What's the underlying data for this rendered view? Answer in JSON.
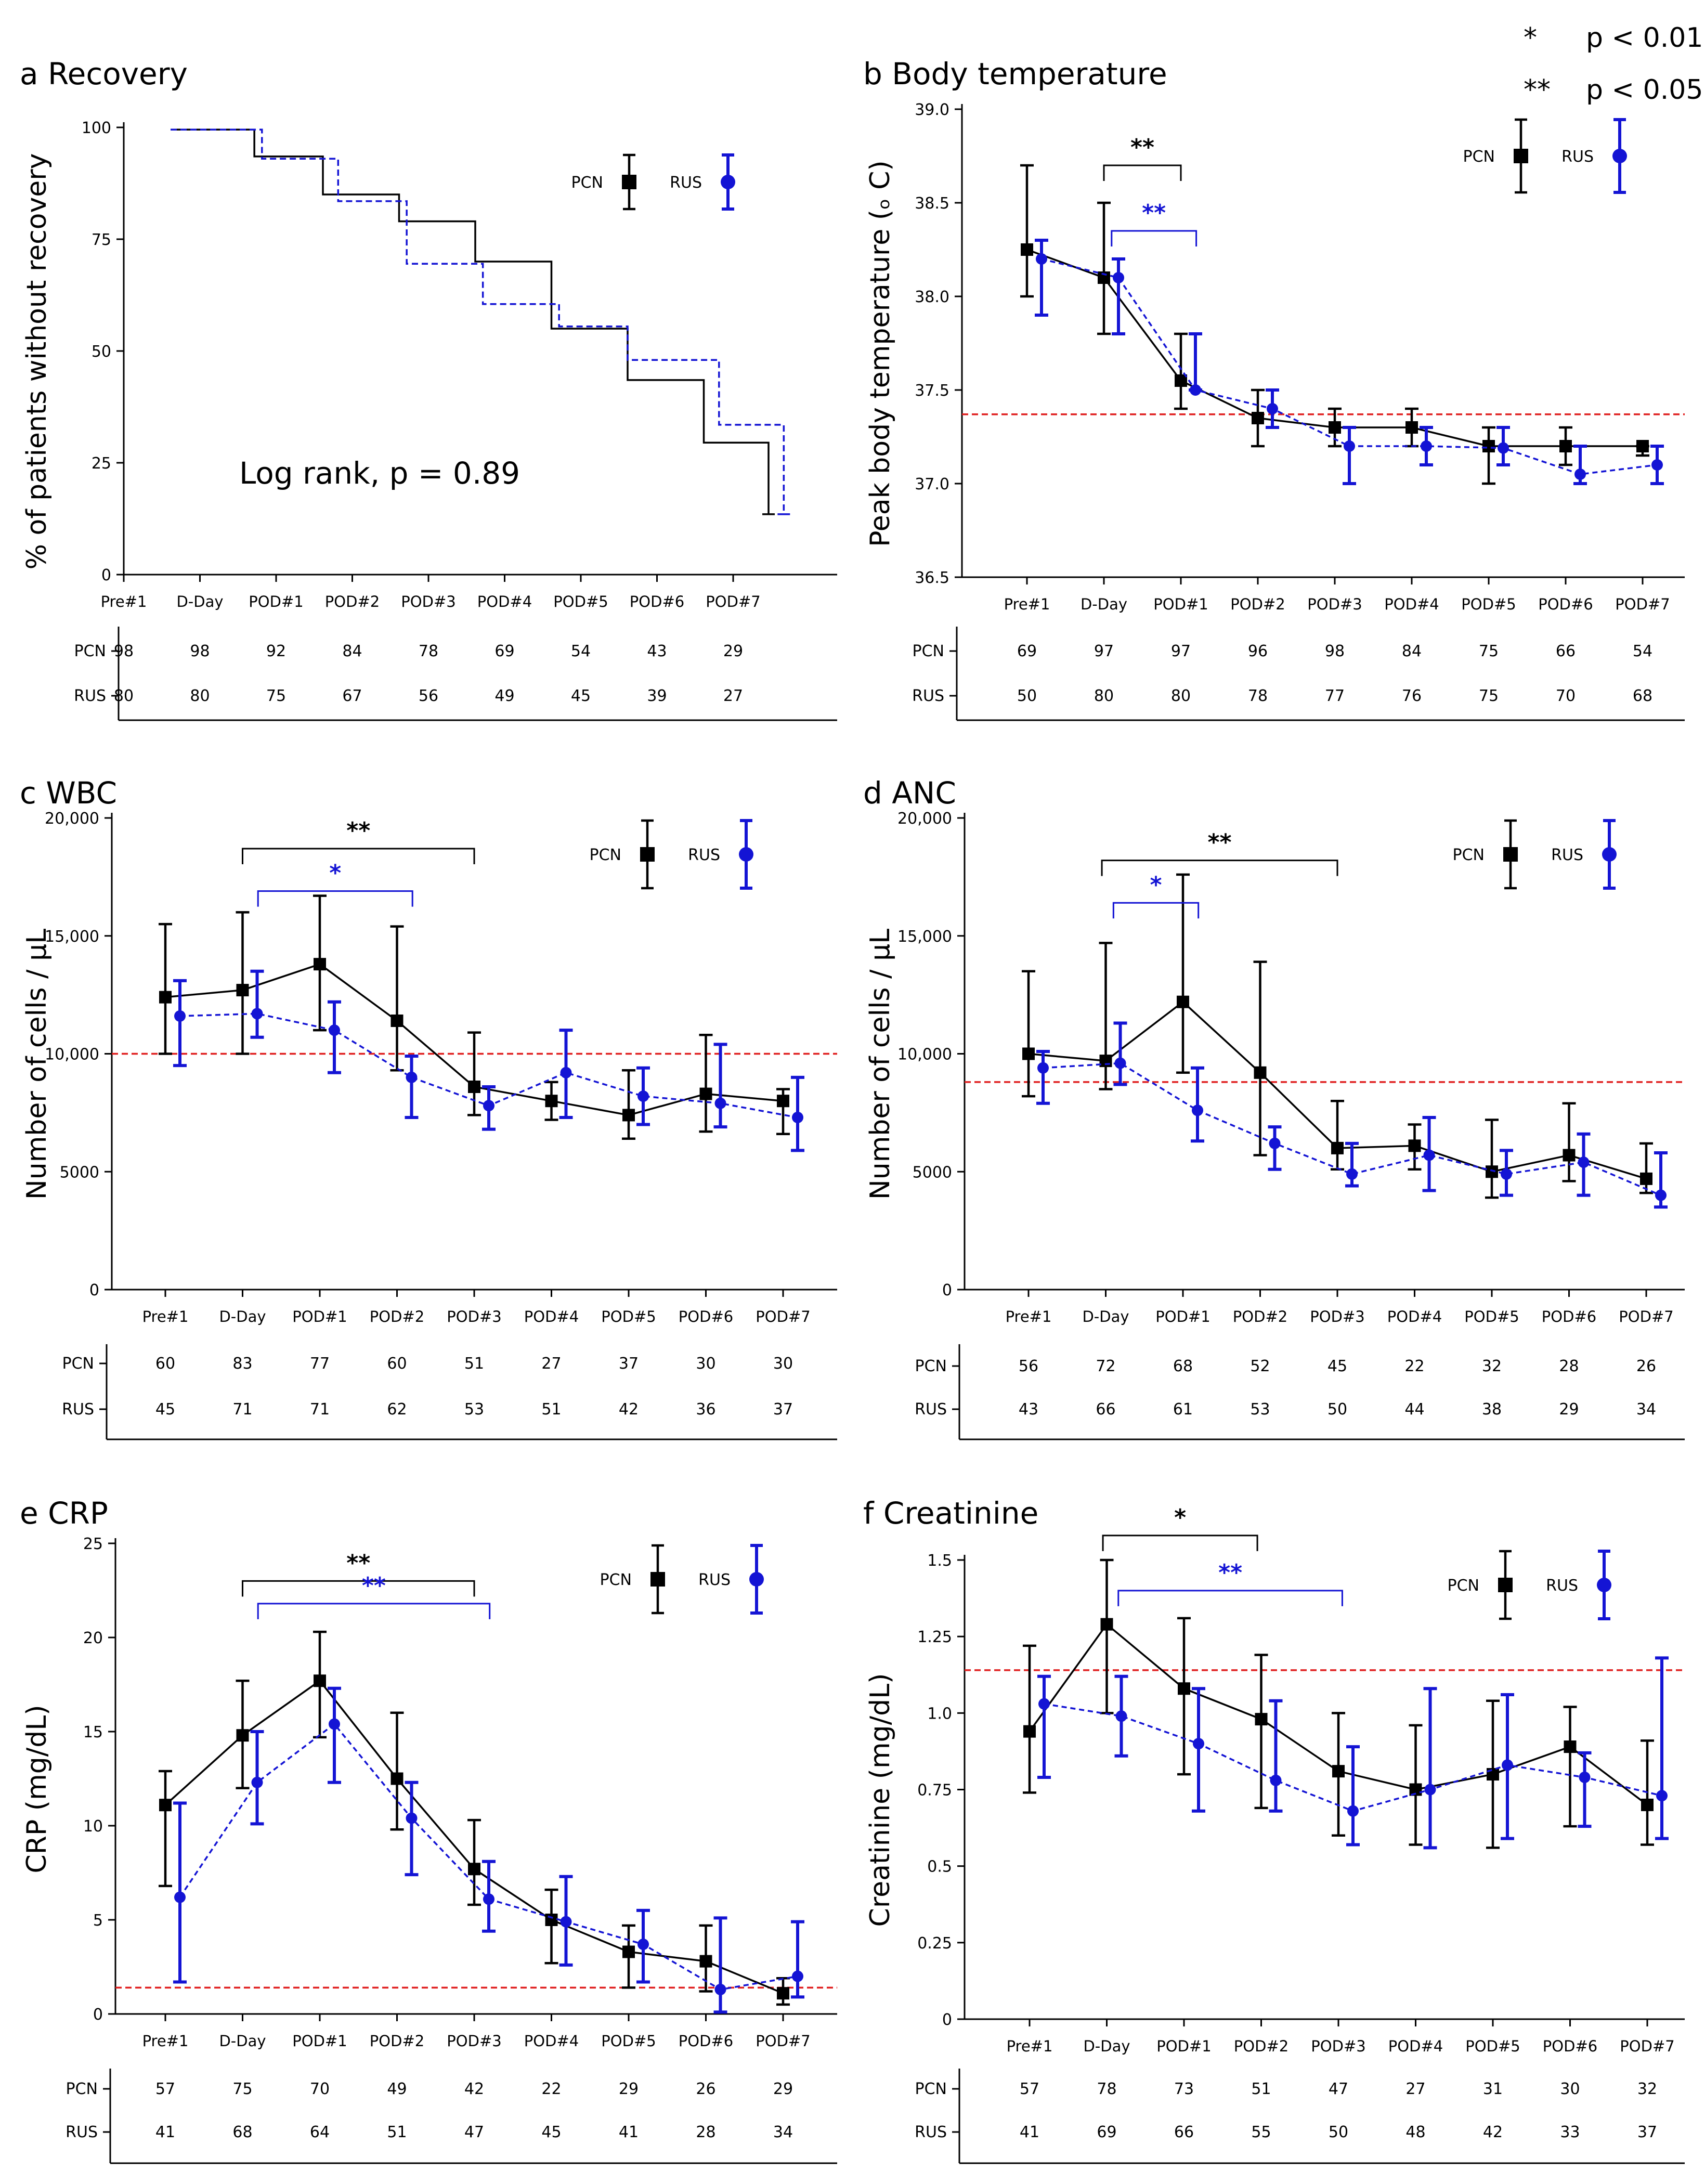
{
  "significance_legend": [
    {
      "symbol": "*",
      "text": "p < 0.01"
    },
    {
      "symbol": "**",
      "text": "p < 0.05"
    }
  ],
  "colors": {
    "pcn": "#000000",
    "rus": "#1414d4",
    "reference": "#e02020"
  },
  "legend": {
    "pcn": "PCN",
    "rus": "RUS"
  },
  "chart_data": [
    {
      "id": "a",
      "type": "line",
      "style": "step",
      "title": "a Recovery",
      "ylabel": "% of patients without recovery",
      "ylim": [
        0,
        100
      ],
      "yticks": [
        0,
        25,
        50,
        75,
        100
      ],
      "ytick_labels": [
        "0",
        "25",
        "50",
        "75",
        "100"
      ],
      "categories": [
        "Pre#1",
        "D-Day",
        "POD#1",
        "POD#2",
        "POD#3",
        "POD#4",
        "POD#5",
        "POD#6",
        "POD#7"
      ],
      "series": [
        {
          "name": "PCN",
          "steps": [
            [
              0,
              99.5
            ],
            [
              1.1,
              99.5
            ],
            [
              1.1,
              93.5
            ],
            [
              2,
              93.5
            ],
            [
              2,
              85
            ],
            [
              3,
              85
            ],
            [
              3,
              79
            ],
            [
              4,
              79
            ],
            [
              4,
              70
            ],
            [
              5,
              70
            ],
            [
              5,
              55
            ],
            [
              6,
              55
            ],
            [
              6,
              43.5
            ],
            [
              7,
              43.5
            ],
            [
              7,
              29.5
            ],
            [
              7.85,
              29.5
            ],
            [
              7.85,
              13.5
            ]
          ]
        },
        {
          "name": "RUS",
          "steps": [
            [
              0,
              99.5
            ],
            [
              1.2,
              99.5
            ],
            [
              1.2,
              93
            ],
            [
              2.2,
              93
            ],
            [
              2.2,
              83.5
            ],
            [
              3.1,
              83.5
            ],
            [
              3.1,
              69.5
            ],
            [
              4.1,
              69.5
            ],
            [
              4.1,
              60.5
            ],
            [
              5.1,
              60.5
            ],
            [
              5.1,
              55.5
            ],
            [
              6,
              55.5
            ],
            [
              6,
              48
            ],
            [
              7.2,
              48
            ],
            [
              7.2,
              33.5
            ],
            [
              8.05,
              33.5
            ],
            [
              8.05,
              13.5
            ]
          ]
        }
      ],
      "annotation": "Log rank, p = 0.89",
      "counts": {
        "PCN": [
          98,
          98,
          92,
          84,
          78,
          69,
          54,
          43,
          29
        ],
        "RUS": [
          80,
          80,
          75,
          67,
          56,
          49,
          45,
          39,
          27
        ]
      }
    },
    {
      "id": "b",
      "type": "line",
      "title": "b Body temperature",
      "ylabel": "Peak body temperature (ₒ C)",
      "ylim": [
        36.5,
        39.0
      ],
      "yticks": [
        36.5,
        37.0,
        37.5,
        38.0,
        38.5,
        39.0
      ],
      "ytick_labels": [
        "36.5",
        "37.0",
        "37.5",
        "38.0",
        "38.5",
        "39.0"
      ],
      "categories": [
        "Pre#1",
        "D-Day",
        "POD#1",
        "POD#2",
        "POD#3",
        "POD#4",
        "POD#5",
        "POD#6",
        "POD#7"
      ],
      "reference_line": 37.37,
      "series": [
        {
          "name": "PCN",
          "values": [
            38.25,
            38.1,
            37.55,
            37.35,
            37.3,
            37.3,
            37.2,
            37.2,
            37.2
          ],
          "err_low": [
            38.0,
            37.8,
            37.4,
            37.2,
            37.2,
            37.2,
            37.0,
            37.1,
            37.15
          ],
          "err_high": [
            38.7,
            38.5,
            37.8,
            37.5,
            37.4,
            37.4,
            37.3,
            37.3,
            37.2
          ]
        },
        {
          "name": "RUS",
          "values": [
            38.2,
            38.1,
            37.5,
            37.4,
            37.2,
            37.2,
            37.19,
            37.05,
            37.1
          ],
          "err_low": [
            37.9,
            37.8,
            37.5,
            37.3,
            37.0,
            37.1,
            37.1,
            37.0,
            37.0
          ],
          "err_high": [
            38.3,
            38.2,
            37.8,
            37.5,
            37.3,
            37.3,
            37.3,
            37.2,
            37.2
          ]
        }
      ],
      "brackets": [
        {
          "series": "PCN",
          "from": 1,
          "to": 2,
          "y": 38.7,
          "label": "**"
        },
        {
          "series": "RUS",
          "from": 1.1,
          "to": 2.2,
          "y": 38.35,
          "label": "**"
        }
      ],
      "counts": {
        "PCN": [
          69,
          97,
          97,
          96,
          98,
          84,
          75,
          66,
          54
        ],
        "RUS": [
          50,
          80,
          80,
          78,
          77,
          76,
          75,
          70,
          68
        ]
      }
    },
    {
      "id": "c",
      "type": "line",
      "title": "c WBC",
      "ylabel": "Number of cells / µL",
      "ylim": [
        0,
        20000
      ],
      "yticks": [
        0,
        5000,
        10000,
        15000,
        20000
      ],
      "ytick_labels": [
        "0",
        "5000",
        "10,000",
        "15,000",
        "20,000"
      ],
      "categories": [
        "Pre#1",
        "D-Day",
        "POD#1",
        "POD#2",
        "POD#3",
        "POD#4",
        "POD#5",
        "POD#6",
        "POD#7"
      ],
      "reference_line": 10000,
      "series": [
        {
          "name": "PCN",
          "values": [
            12400,
            12700,
            13800,
            11400,
            8600,
            8000,
            7400,
            8300,
            8000
          ],
          "err_low": [
            10000,
            10000,
            11000,
            9300,
            7400,
            7200,
            6400,
            6700,
            6600
          ],
          "err_high": [
            15500,
            16000,
            16700,
            15400,
            10900,
            8800,
            9300,
            10800,
            8500
          ]
        },
        {
          "name": "RUS",
          "values": [
            11600,
            11700,
            11000,
            9000,
            7800,
            9200,
            8200,
            7900,
            7300
          ],
          "err_low": [
            9500,
            10700,
            9200,
            7300,
            6800,
            7300,
            7000,
            6900,
            5900
          ],
          "err_high": [
            13100,
            13500,
            12200,
            9900,
            8600,
            11000,
            9400,
            10400,
            9000
          ]
        }
      ],
      "brackets": [
        {
          "series": "PCN",
          "from": 1,
          "to": 4,
          "y": 18700,
          "label": "**"
        },
        {
          "series": "RUS",
          "from": 1.2,
          "to": 3.2,
          "y": 16900,
          "label": "*"
        }
      ],
      "counts": {
        "PCN": [
          60,
          83,
          77,
          60,
          51,
          27,
          37,
          30,
          30
        ],
        "RUS": [
          45,
          71,
          71,
          62,
          53,
          51,
          42,
          36,
          37
        ]
      }
    },
    {
      "id": "d",
      "type": "line",
      "title": "d ANC",
      "ylabel": "Number of cells / µL",
      "ylim": [
        0,
        20000
      ],
      "yticks": [
        0,
        5000,
        10000,
        15000,
        20000
      ],
      "ytick_labels": [
        "0",
        "5000",
        "10,000",
        "15,000",
        "20,000"
      ],
      "categories": [
        "Pre#1",
        "D-Day",
        "POD#1",
        "POD#2",
        "POD#3",
        "POD#4",
        "POD#5",
        "POD#6",
        "POD#7"
      ],
      "reference_line": 8800,
      "series": [
        {
          "name": "PCN",
          "values": [
            10000,
            9700,
            12200,
            9200,
            6000,
            6100,
            5000,
            5700,
            4700
          ],
          "err_low": [
            8200,
            8500,
            9200,
            5700,
            5100,
            5100,
            3900,
            4600,
            4100
          ],
          "err_high": [
            13500,
            14700,
            17600,
            13900,
            8000,
            7000,
            7200,
            7900,
            6200
          ]
        },
        {
          "name": "RUS",
          "values": [
            9400,
            9600,
            7600,
            6200,
            4900,
            5700,
            4900,
            5400,
            4000
          ],
          "err_low": [
            7900,
            8700,
            6300,
            5100,
            4400,
            4200,
            4000,
            4000,
            3500
          ],
          "err_high": [
            10100,
            11300,
            9400,
            6900,
            6200,
            7300,
            5900,
            6600,
            5800
          ]
        }
      ],
      "brackets": [
        {
          "series": "PCN",
          "from": 0.95,
          "to": 4,
          "y": 18200,
          "label": "**"
        },
        {
          "series": "RUS",
          "from": 1.1,
          "to": 2.2,
          "y": 16400,
          "label": "*"
        }
      ],
      "counts": {
        "PCN": [
          56,
          72,
          68,
          52,
          45,
          22,
          32,
          28,
          26
        ],
        "RUS": [
          43,
          66,
          61,
          53,
          50,
          44,
          38,
          29,
          34
        ]
      }
    },
    {
      "id": "e",
      "type": "line",
      "title": "e CRP",
      "ylabel": "CRP (mg/dL)",
      "ylim": [
        0,
        25
      ],
      "yticks": [
        0,
        5,
        10,
        15,
        20,
        25
      ],
      "ytick_labels": [
        "0",
        "5",
        "10",
        "15",
        "20",
        "25"
      ],
      "categories": [
        "Pre#1",
        "D-Day",
        "POD#1",
        "POD#2",
        "POD#3",
        "POD#4",
        "POD#5",
        "POD#6",
        "POD#7"
      ],
      "reference_line": 1.4,
      "series": [
        {
          "name": "PCN",
          "values": [
            11.1,
            14.8,
            17.7,
            12.5,
            7.7,
            5.0,
            3.3,
            2.8,
            1.1
          ],
          "err_low": [
            6.8,
            12.0,
            14.7,
            9.8,
            5.8,
            2.7,
            1.4,
            1.2,
            0.5
          ],
          "err_high": [
            12.9,
            17.7,
            20.3,
            16.0,
            10.3,
            6.6,
            4.7,
            4.7,
            1.9
          ]
        },
        {
          "name": "RUS",
          "values": [
            6.2,
            12.3,
            15.4,
            10.4,
            6.1,
            4.9,
            3.7,
            1.3,
            2.0
          ],
          "err_low": [
            1.7,
            10.1,
            12.3,
            7.4,
            4.4,
            2.6,
            1.7,
            0.1,
            0.9
          ],
          "err_high": [
            11.2,
            15.0,
            17.3,
            12.3,
            8.1,
            7.3,
            5.5,
            5.1,
            4.9
          ]
        }
      ],
      "brackets": [
        {
          "series": "PCN",
          "from": 1,
          "to": 4,
          "y": 23.0,
          "label": "**"
        },
        {
          "series": "RUS",
          "from": 1.2,
          "to": 4.2,
          "y": 21.8,
          "label": "**"
        }
      ],
      "counts": {
        "PCN": [
          57,
          75,
          70,
          49,
          42,
          22,
          29,
          26,
          29
        ],
        "RUS": [
          41,
          68,
          64,
          51,
          47,
          45,
          41,
          28,
          34
        ]
      }
    },
    {
      "id": "f",
      "type": "line",
      "title": "f Creatinine",
      "ylabel": "Creatinine (mg/dL)",
      "ylim": [
        0,
        1.5
      ],
      "yticks": [
        0,
        0.25,
        0.5,
        0.75,
        1.0,
        1.25,
        1.5
      ],
      "ytick_labels": [
        "0",
        "0.25",
        "0.5",
        "0.75",
        "1.0",
        "1.25",
        "1.5"
      ],
      "categories": [
        "Pre#1",
        "D-Day",
        "POD#1",
        "POD#2",
        "POD#3",
        "POD#4",
        "POD#5",
        "POD#6",
        "POD#7"
      ],
      "reference_line": 1.14,
      "series": [
        {
          "name": "PCN",
          "values": [
            0.94,
            1.29,
            1.08,
            0.98,
            0.81,
            0.75,
            0.8,
            0.89,
            0.7
          ],
          "err_low": [
            0.74,
            1.0,
            0.8,
            0.69,
            0.6,
            0.57,
            0.56,
            0.63,
            0.57
          ],
          "err_high": [
            1.22,
            1.5,
            1.31,
            1.19,
            1.0,
            0.96,
            1.04,
            1.02,
            0.91
          ]
        },
        {
          "name": "RUS",
          "values": [
            1.03,
            0.99,
            0.9,
            0.78,
            0.68,
            0.75,
            0.83,
            0.79,
            0.73
          ],
          "err_low": [
            0.79,
            0.86,
            0.68,
            0.68,
            0.57,
            0.56,
            0.59,
            0.63,
            0.59
          ],
          "err_high": [
            1.12,
            1.12,
            1.08,
            1.04,
            0.89,
            1.08,
            1.06,
            0.87,
            1.18
          ]
        }
      ],
      "brackets": [
        {
          "series": "PCN",
          "from": 0.95,
          "to": 2.95,
          "y": 1.58,
          "label": "*"
        },
        {
          "series": "RUS",
          "from": 1.15,
          "to": 4.05,
          "y": 1.4,
          "label": "**"
        }
      ],
      "counts": {
        "PCN": [
          57,
          78,
          73,
          51,
          47,
          27,
          31,
          30,
          32
        ],
        "RUS": [
          41,
          69,
          66,
          55,
          50,
          48,
          42,
          33,
          37
        ]
      }
    }
  ]
}
